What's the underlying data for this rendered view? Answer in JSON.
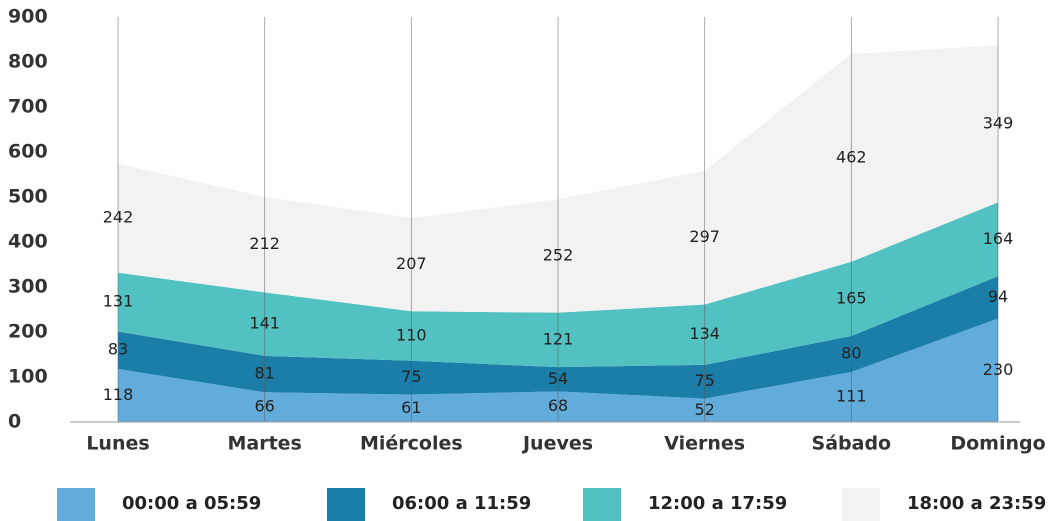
{
  "chart_data": {
    "type": "area",
    "stacked": true,
    "categories": [
      "Lunes",
      "Martes",
      "Miércoles",
      "Jueves",
      "Viernes",
      "Sábado",
      "Domingo"
    ],
    "series": [
      {
        "name": "00:00 a 05:59",
        "color": "#62acdc",
        "values": [
          118,
          66,
          61,
          68,
          52,
          111,
          230
        ]
      },
      {
        "name": "06:00 a 11:59",
        "color": "#1a7ea8",
        "values": [
          83,
          81,
          75,
          54,
          75,
          80,
          94
        ]
      },
      {
        "name": "12:00 a 17:59",
        "color": "#52c1c2",
        "values": [
          131,
          141,
          110,
          121,
          134,
          165,
          164
        ]
      },
      {
        "name": "18:00 a 23:59",
        "color": "#f2f2f2",
        "values": [
          242,
          212,
          207,
          252,
          297,
          462,
          349
        ]
      }
    ],
    "ylim": [
      0,
      900
    ],
    "yticks": [
      0,
      100,
      200,
      300,
      400,
      500,
      600,
      700,
      800,
      900
    ],
    "legend": "bottom"
  }
}
